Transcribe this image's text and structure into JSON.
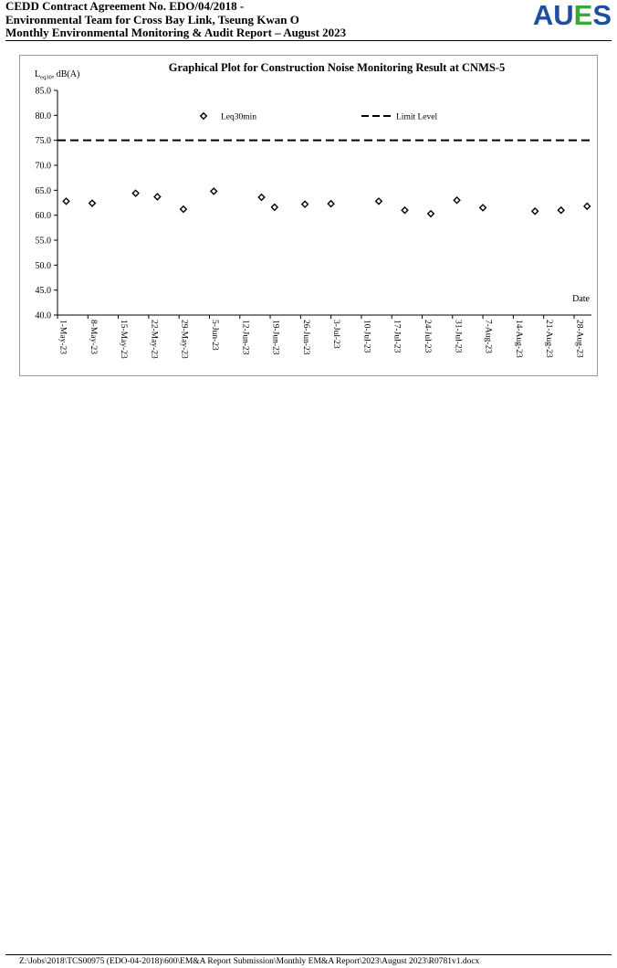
{
  "header": {
    "lines": [
      "CEDD Contract Agreement No. EDO/04/2018 -",
      "Environmental Team for Cross Bay Link, Tseung Kwan O",
      "Monthly Environmental Monitoring & Audit Report – August 2023"
    ],
    "logo": {
      "letters": [
        "A",
        "U",
        "E",
        "S"
      ],
      "colors": [
        "#1f4fa0",
        "#1f4fa0",
        "#3aa935",
        "#1f4fa0"
      ]
    }
  },
  "chart_data": {
    "type": "scatter",
    "title": "Graphical Plot for Construction Noise Monitoring Result at CNMS-5",
    "ylabel_main": "L",
    "ylabel_sub": "eq30",
    "ylabel_tail": ", dB(A)",
    "xlabel": "Date",
    "ylim": [
      40.0,
      85.0
    ],
    "ytick_step": 5.0,
    "yticks": [
      "40.0",
      "45.0",
      "50.0",
      "55.0",
      "60.0",
      "65.0",
      "70.0",
      "75.0",
      "80.0",
      "85.0"
    ],
    "xlim": [
      "2023-05-01",
      "2023-09-01"
    ],
    "xticks": [
      {
        "date": "2023-05-01",
        "label": "1-May-23"
      },
      {
        "date": "2023-05-08",
        "label": "8-May-23"
      },
      {
        "date": "2023-05-15",
        "label": "15-May-23"
      },
      {
        "date": "2023-05-22",
        "label": "22-May-23"
      },
      {
        "date": "2023-05-29",
        "label": "29-May-23"
      },
      {
        "date": "2023-06-05",
        "label": "5-Jun-23"
      },
      {
        "date": "2023-06-12",
        "label": "12-Jun-23"
      },
      {
        "date": "2023-06-19",
        "label": "19-Jun-23"
      },
      {
        "date": "2023-06-26",
        "label": "26-Jun-23"
      },
      {
        "date": "2023-07-03",
        "label": "3-Jul-23"
      },
      {
        "date": "2023-07-10",
        "label": "10-Jul-23"
      },
      {
        "date": "2023-07-17",
        "label": "17-Jul-23"
      },
      {
        "date": "2023-07-24",
        "label": "24-Jul-23"
      },
      {
        "date": "2023-07-31",
        "label": "31-Jul-23"
      },
      {
        "date": "2023-08-07",
        "label": "7-Aug-23"
      },
      {
        "date": "2023-08-14",
        "label": "14-Aug-23"
      },
      {
        "date": "2023-08-21",
        "label": "21-Aug-23"
      },
      {
        "date": "2023-08-28",
        "label": "28-Aug-23"
      }
    ],
    "series": [
      {
        "name": "Leq30min",
        "marker": "diamond-open",
        "color": "#000000",
        "points": [
          {
            "x": "2023-05-03",
            "y": 62.8
          },
          {
            "x": "2023-05-09",
            "y": 62.4
          },
          {
            "x": "2023-05-19",
            "y": 64.4
          },
          {
            "x": "2023-05-24",
            "y": 63.7
          },
          {
            "x": "2023-05-30",
            "y": 61.2
          },
          {
            "x": "2023-06-06",
            "y": 64.8
          },
          {
            "x": "2023-06-17",
            "y": 63.6
          },
          {
            "x": "2023-06-20",
            "y": 61.6
          },
          {
            "x": "2023-06-27",
            "y": 62.2
          },
          {
            "x": "2023-07-03",
            "y": 62.3
          },
          {
            "x": "2023-07-14",
            "y": 62.8
          },
          {
            "x": "2023-07-20",
            "y": 61.0
          },
          {
            "x": "2023-07-26",
            "y": 60.3
          },
          {
            "x": "2023-08-01",
            "y": 63.0
          },
          {
            "x": "2023-08-07",
            "y": 61.5
          },
          {
            "x": "2023-08-19",
            "y": 60.8
          },
          {
            "x": "2023-08-25",
            "y": 61.0
          },
          {
            "x": "2023-08-31",
            "y": 61.8
          }
        ]
      },
      {
        "name": "Limit Level",
        "style": "dashed-line",
        "color": "#000000",
        "value": 75.0
      }
    ],
    "legend_position": "top-center",
    "grid": false
  },
  "footer": {
    "path": "Z:\\Jobs\\2018\\TCS00975 (EDO-04-2018)\\600\\EM&A Report Submission\\Monthly EM&A Report\\2023\\August 2023\\R0781v1.docx"
  }
}
